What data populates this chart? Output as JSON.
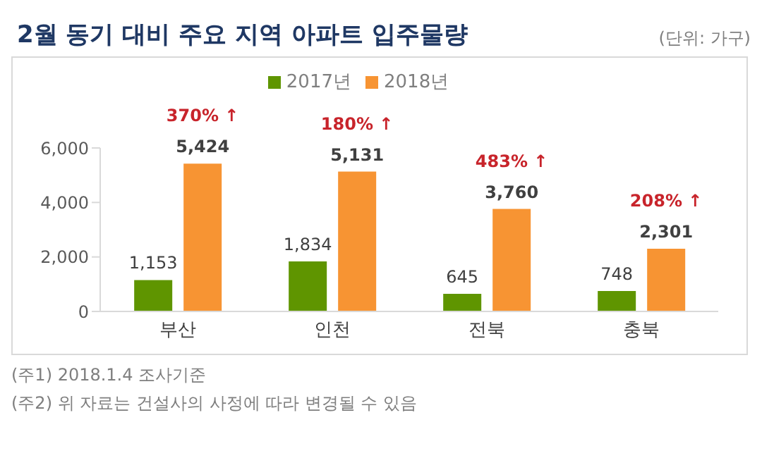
{
  "chart_data": {
    "type": "bar",
    "title": "2월 동기 대비 주요 지역 아파트 입주물량",
    "categories": [
      "부산",
      "인천",
      "전북",
      "충북"
    ],
    "series": [
      {
        "name": "2017년",
        "color": "#5f9500",
        "values": [
          1153,
          1834,
          645,
          748
        ],
        "value_labels": [
          "1,153",
          "1,834",
          "645",
          "748"
        ]
      },
      {
        "name": "2018년",
        "color": "#f79433",
        "values": [
          5424,
          5131,
          3760,
          2301
        ],
        "value_labels": [
          "5,424",
          "5,131",
          "3,760",
          "2,301"
        ]
      }
    ],
    "ylim": [
      0,
      6000
    ],
    "yticks": [
      0,
      {
        "value": 2000,
        "label": "2,000"
      },
      {
        "value": 4000,
        "label": "4,000"
      },
      {
        "value": 6000,
        "label": "6,000"
      }
    ],
    "legend": "top",
    "grid": false,
    "annotations": [
      "(단위: 가구)",
      {
        "text": "370% ↑",
        "x": "부산",
        "y": 5424
      },
      {
        "text": "180% ↑",
        "x": "인천",
        "y": 5131
      },
      {
        "text": "483% ↑",
        "x": "전북",
        "y": 3760
      },
      {
        "text": "208% ↑",
        "x": "충북",
        "y": 2301
      },
      "(주1) 2018.1.4 조사기준",
      "(주2) 위 자료는 건설사의 사정에 따라 변경될 수 있음"
    ]
  }
}
